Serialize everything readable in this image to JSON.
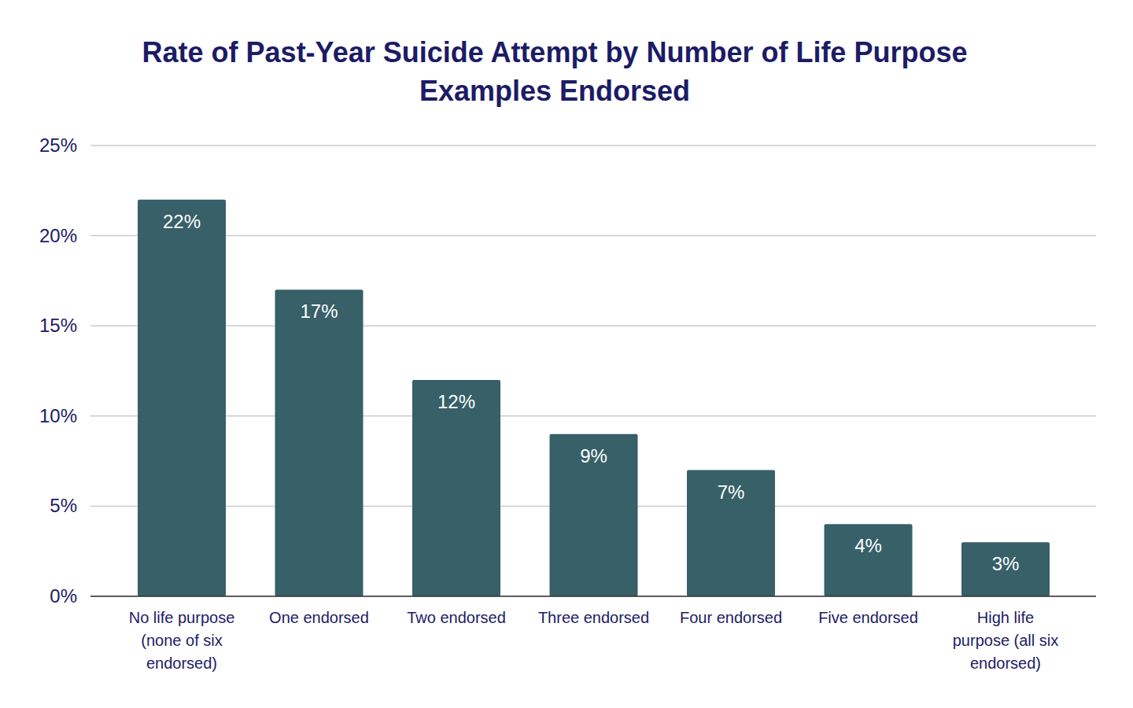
{
  "chart_data": {
    "type": "bar",
    "title": "Rate of Past-Year Suicide Attempt by Number of Life Purpose Examples Endorsed",
    "categories": [
      "No life purpose (none of six endorsed)",
      "One endorsed",
      "Two endorsed",
      "Three endorsed",
      "Four endorsed",
      "Five endorsed",
      "High life purpose (all six endorsed)"
    ],
    "values": [
      22,
      17,
      12,
      9,
      7,
      4,
      3
    ],
    "value_labels": [
      "22%",
      "17%",
      "12%",
      "9%",
      "7%",
      "4%",
      "3%"
    ],
    "color": "#376068",
    "ylim": [
      0,
      25
    ],
    "yticks": [
      {
        "value": 0,
        "label": "0%"
      },
      {
        "value": 5,
        "label": "5%"
      },
      {
        "value": 10,
        "label": "10%"
      },
      {
        "value": 15,
        "label": "15%"
      },
      {
        "value": 20,
        "label": "20%"
      },
      {
        "value": 25,
        "label": "25%"
      }
    ],
    "grid": true,
    "data_labels": true
  }
}
